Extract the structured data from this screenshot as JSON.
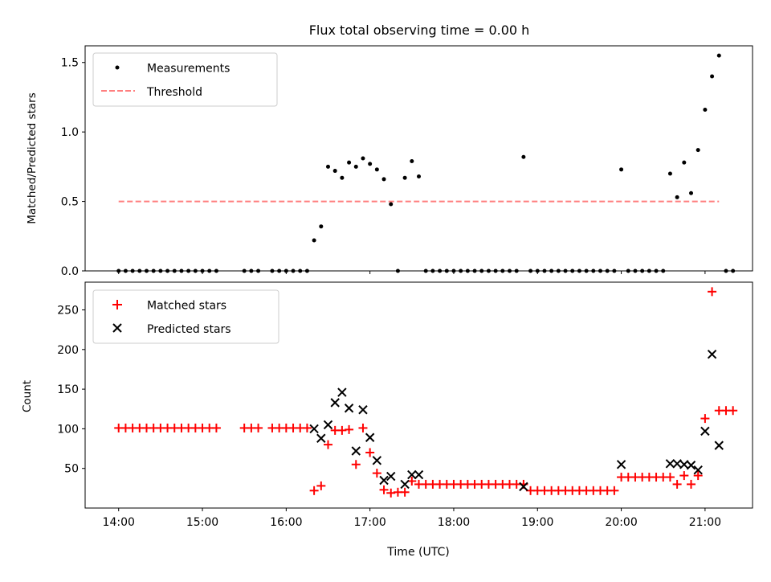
{
  "chart_data": [
    {
      "type": "scatter",
      "title": "Flux total observing time = 0.00 h",
      "ylabel": "Matched/Predicted stars",
      "xlabel": "",
      "ylim": [
        0,
        1.62
      ],
      "yticks": [
        "0.0",
        "0.5",
        "1.0",
        "1.5"
      ],
      "grid": false,
      "legend_position": "top-left",
      "legend": {
        "measurements": "Measurements",
        "threshold": "Threshold"
      },
      "threshold": {
        "value": 0.5,
        "x_start": "14:00",
        "x_end": "21:10",
        "color": "#ff7f7f",
        "style": "dashed"
      },
      "series": [
        {
          "name": "Measurements",
          "color": "#000000",
          "marker": "dot",
          "points": [
            [
              "14:00",
              0
            ],
            [
              "14:05",
              0
            ],
            [
              "14:10",
              0
            ],
            [
              "14:15",
              0
            ],
            [
              "14:20",
              0
            ],
            [
              "14:25",
              0
            ],
            [
              "14:30",
              0
            ],
            [
              "14:35",
              0
            ],
            [
              "14:40",
              0
            ],
            [
              "14:45",
              0
            ],
            [
              "14:50",
              0
            ],
            [
              "14:55",
              0
            ],
            [
              "15:00",
              0
            ],
            [
              "15:05",
              0
            ],
            [
              "15:10",
              0
            ],
            [
              "15:30",
              0
            ],
            [
              "15:35",
              0
            ],
            [
              "15:40",
              0
            ],
            [
              "15:50",
              0
            ],
            [
              "15:55",
              0
            ],
            [
              "16:00",
              0
            ],
            [
              "16:05",
              0
            ],
            [
              "16:10",
              0
            ],
            [
              "16:15",
              0
            ],
            [
              "16:20",
              0.22
            ],
            [
              "16:25",
              0.32
            ],
            [
              "16:30",
              0.75
            ],
            [
              "16:35",
              0.72
            ],
            [
              "16:40",
              0.67
            ],
            [
              "16:45",
              0.78
            ],
            [
              "16:50",
              0.75
            ],
            [
              "16:55",
              0.81
            ],
            [
              "17:00",
              0.77
            ],
            [
              "17:05",
              0.73
            ],
            [
              "17:10",
              0.66
            ],
            [
              "17:15",
              0.48
            ],
            [
              "17:20",
              0
            ],
            [
              "17:25",
              0.67
            ],
            [
              "17:30",
              0.79
            ],
            [
              "17:35",
              0.68
            ],
            [
              "17:40",
              0
            ],
            [
              "17:45",
              0
            ],
            [
              "17:50",
              0
            ],
            [
              "17:55",
              0
            ],
            [
              "18:00",
              0
            ],
            [
              "18:05",
              0
            ],
            [
              "18:10",
              0
            ],
            [
              "18:15",
              0
            ],
            [
              "18:20",
              0
            ],
            [
              "18:25",
              0
            ],
            [
              "18:30",
              0
            ],
            [
              "18:35",
              0
            ],
            [
              "18:40",
              0
            ],
            [
              "18:45",
              0
            ],
            [
              "18:50",
              0.82
            ],
            [
              "18:55",
              0
            ],
            [
              "19:00",
              0
            ],
            [
              "19:05",
              0
            ],
            [
              "19:10",
              0
            ],
            [
              "19:15",
              0
            ],
            [
              "19:20",
              0
            ],
            [
              "19:25",
              0
            ],
            [
              "19:30",
              0
            ],
            [
              "19:35",
              0
            ],
            [
              "19:40",
              0
            ],
            [
              "19:45",
              0
            ],
            [
              "19:50",
              0
            ],
            [
              "19:55",
              0
            ],
            [
              "20:00",
              0.73
            ],
            [
              "20:05",
              0
            ],
            [
              "20:10",
              0
            ],
            [
              "20:15",
              0
            ],
            [
              "20:20",
              0
            ],
            [
              "20:25",
              0
            ],
            [
              "20:30",
              0
            ],
            [
              "20:35",
              0.7
            ],
            [
              "20:40",
              0.53
            ],
            [
              "20:45",
              0.78
            ],
            [
              "20:50",
              0.56
            ],
            [
              "20:55",
              0.87
            ],
            [
              "21:00",
              1.16
            ],
            [
              "21:05",
              1.4
            ],
            [
              "21:10",
              1.55
            ],
            [
              "21:15",
              0
            ],
            [
              "21:20",
              0
            ]
          ]
        }
      ]
    },
    {
      "type": "scatter",
      "title": "",
      "xlabel": "Time (UTC)",
      "ylabel": "Count",
      "ylim": [
        0,
        285
      ],
      "yticks": [
        "50",
        "100",
        "150",
        "200",
        "250"
      ],
      "xlim": [
        "13:36",
        "21:34"
      ],
      "xticks": [
        "14:00",
        "15:00",
        "16:00",
        "17:00",
        "18:00",
        "19:00",
        "20:00",
        "21:00"
      ],
      "grid": false,
      "legend_position": "top-left",
      "series": [
        {
          "name": "Matched stars",
          "color": "#ff0000",
          "marker": "plus",
          "points": [
            [
              "14:00",
              101
            ],
            [
              "14:05",
              101
            ],
            [
              "14:10",
              101
            ],
            [
              "14:15",
              101
            ],
            [
              "14:20",
              101
            ],
            [
              "14:25",
              101
            ],
            [
              "14:30",
              101
            ],
            [
              "14:35",
              101
            ],
            [
              "14:40",
              101
            ],
            [
              "14:45",
              101
            ],
            [
              "14:50",
              101
            ],
            [
              "14:55",
              101
            ],
            [
              "15:00",
              101
            ],
            [
              "15:05",
              101
            ],
            [
              "15:10",
              101
            ],
            [
              "15:30",
              101
            ],
            [
              "15:35",
              101
            ],
            [
              "15:40",
              101
            ],
            [
              "15:50",
              101
            ],
            [
              "15:55",
              101
            ],
            [
              "16:00",
              101
            ],
            [
              "16:05",
              101
            ],
            [
              "16:10",
              101
            ],
            [
              "16:15",
              101
            ],
            [
              "16:20",
              22
            ],
            [
              "16:25",
              28
            ],
            [
              "16:30",
              80
            ],
            [
              "16:35",
              98
            ],
            [
              "16:40",
              98
            ],
            [
              "16:45",
              99
            ],
            [
              "16:50",
              55
            ],
            [
              "16:55",
              101
            ],
            [
              "17:00",
              70
            ],
            [
              "17:05",
              44
            ],
            [
              "17:10",
              23
            ],
            [
              "17:15",
              19
            ],
            [
              "17:20",
              20
            ],
            [
              "17:25",
              20
            ],
            [
              "17:30",
              34
            ],
            [
              "17:35",
              30
            ],
            [
              "17:40",
              30
            ],
            [
              "17:45",
              30
            ],
            [
              "17:50",
              30
            ],
            [
              "17:55",
              30
            ],
            [
              "18:00",
              30
            ],
            [
              "18:05",
              30
            ],
            [
              "18:10",
              30
            ],
            [
              "18:15",
              30
            ],
            [
              "18:20",
              30
            ],
            [
              "18:25",
              30
            ],
            [
              "18:30",
              30
            ],
            [
              "18:35",
              30
            ],
            [
              "18:40",
              30
            ],
            [
              "18:45",
              30
            ],
            [
              "18:50",
              30
            ],
            [
              "18:55",
              22
            ],
            [
              "19:00",
              22
            ],
            [
              "19:05",
              22
            ],
            [
              "19:10",
              22
            ],
            [
              "19:15",
              22
            ],
            [
              "19:20",
              22
            ],
            [
              "19:25",
              22
            ],
            [
              "19:30",
              22
            ],
            [
              "19:35",
              22
            ],
            [
              "19:40",
              22
            ],
            [
              "19:45",
              22
            ],
            [
              "19:50",
              22
            ],
            [
              "19:55",
              22
            ],
            [
              "20:00",
              39
            ],
            [
              "20:05",
              39
            ],
            [
              "20:10",
              39
            ],
            [
              "20:15",
              39
            ],
            [
              "20:20",
              39
            ],
            [
              "20:25",
              39
            ],
            [
              "20:30",
              39
            ],
            [
              "20:35",
              39
            ],
            [
              "20:40",
              30
            ],
            [
              "20:45",
              41
            ],
            [
              "20:50",
              30
            ],
            [
              "20:55",
              41
            ],
            [
              "21:00",
              113
            ],
            [
              "21:05",
              273
            ],
            [
              "21:10",
              123
            ],
            [
              "21:15",
              123
            ],
            [
              "21:20",
              123
            ]
          ]
        },
        {
          "name": "Predicted stars",
          "color": "#000000",
          "marker": "x",
          "points": [
            [
              "16:20",
              100
            ],
            [
              "16:25",
              88
            ],
            [
              "16:30",
              105
            ],
            [
              "16:35",
              133
            ],
            [
              "16:40",
              146
            ],
            [
              "16:45",
              126
            ],
            [
              "16:50",
              72
            ],
            [
              "16:55",
              124
            ],
            [
              "17:00",
              89
            ],
            [
              "17:05",
              60
            ],
            [
              "17:10",
              35
            ],
            [
              "17:15",
              40
            ],
            [
              "17:25",
              30
            ],
            [
              "17:30",
              42
            ],
            [
              "17:35",
              42
            ],
            [
              "18:50",
              27
            ],
            [
              "20:00",
              55
            ],
            [
              "20:35",
              56
            ],
            [
              "20:40",
              56
            ],
            [
              "20:45",
              55
            ],
            [
              "20:50",
              54
            ],
            [
              "20:55",
              48
            ],
            [
              "21:00",
              97
            ],
            [
              "21:05",
              194
            ],
            [
              "21:10",
              79
            ]
          ]
        }
      ]
    }
  ]
}
